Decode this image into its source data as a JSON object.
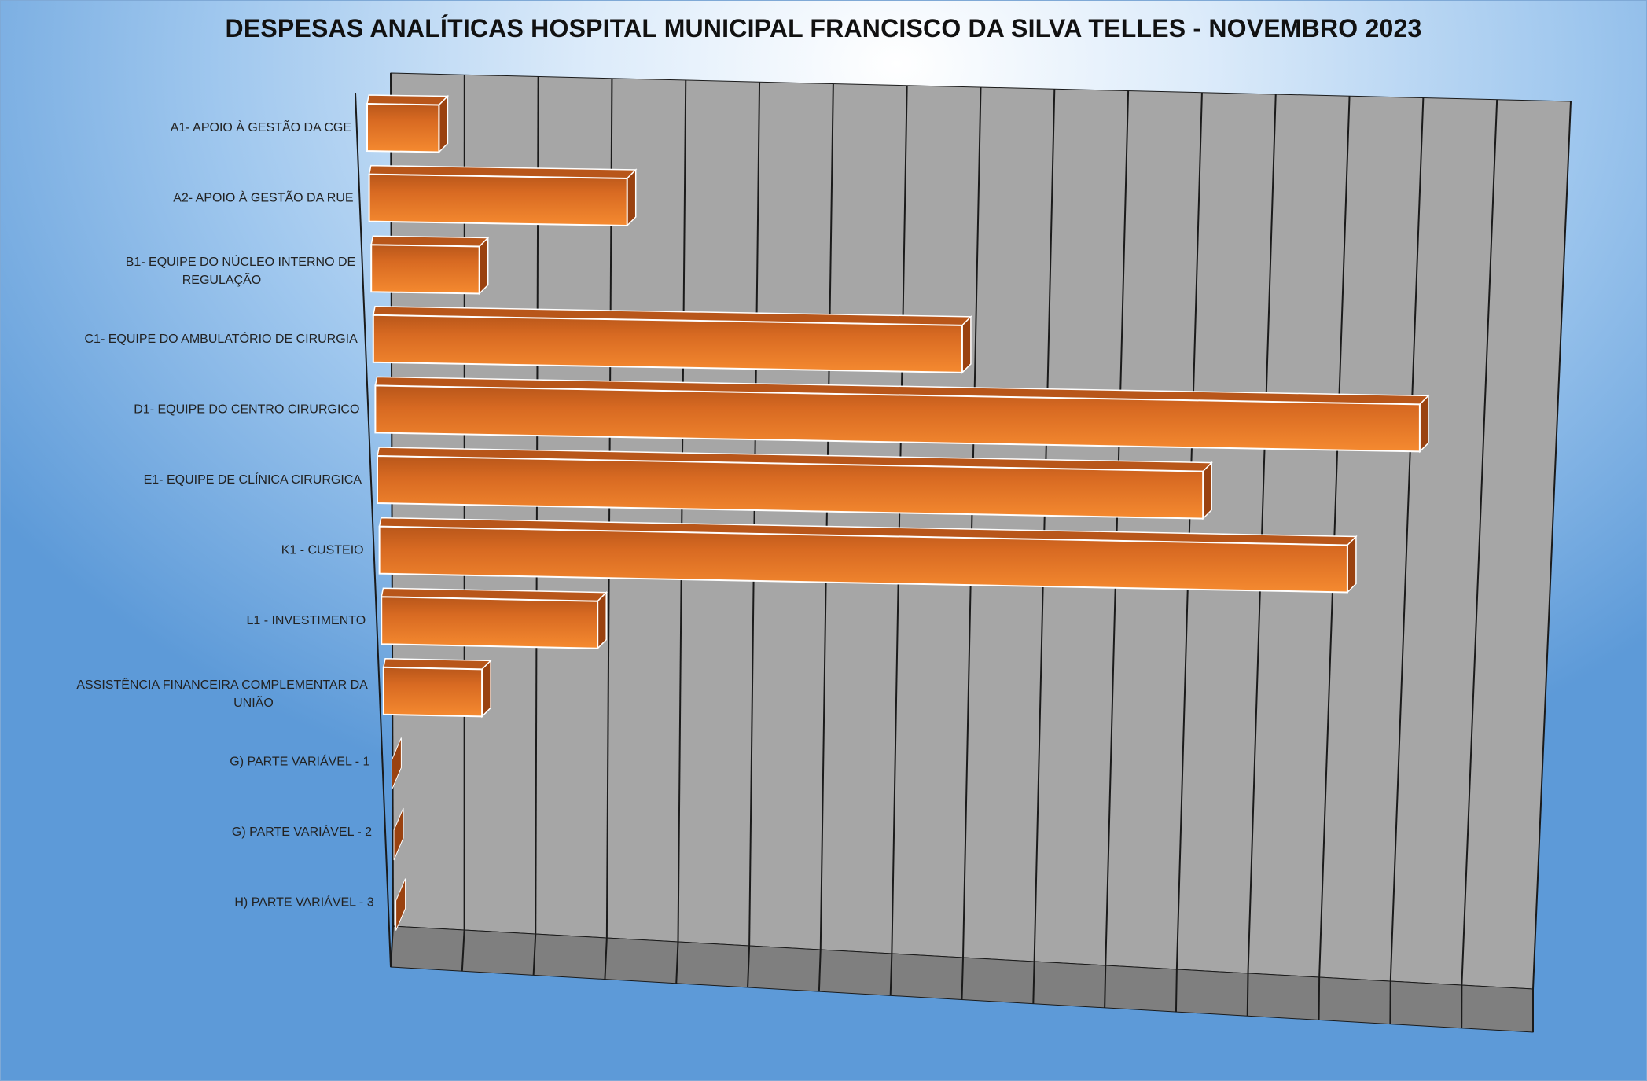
{
  "chart_data": {
    "type": "bar",
    "orientation": "horizontal",
    "style": "3d",
    "title": "DESPESAS ANALÍTICAS HOSPITAL MUNICIPAL FRANCISCO DA SILVA TELLES - NOVEMBRO 2023",
    "xlabel": "",
    "ylabel": "",
    "grid": true,
    "legend": "none",
    "categories": [
      "A1- APOIO À GESTÃO DA CGE",
      "A2- APOIO À GESTÃO DA RUE",
      "B1- EQUIPE DO NÚCLEO INTERNO DE REGULAÇÃO",
      "C1- EQUIPE DO AMBULATÓRIO DE CIRURGIA",
      "D1- EQUIPE DO CENTRO CIRURGICO",
      "E1- EQUIPE DE CLÍNICA CIRURGICA",
      "K1 - CUSTEIO",
      "L1 - INVESTIMENTO",
      "ASSISTÊNCIA FINANCEIRA COMPLEMENTAR DA UNIÃO",
      "G) PARTE VARIÁVEL - 1",
      "G) PARTE VARIÁVEL - 2",
      "H) PARTE VARIÁVEL - 3"
    ],
    "values": [
      1.0,
      3.7,
      1.6,
      9.0,
      16.5,
      13.5,
      16.4,
      3.8,
      1.8,
      0.0,
      0.0,
      0.0
    ],
    "xlim": [
      0,
      16.5
    ],
    "colors": {
      "bar": "#e97a28",
      "bar_dark": "#9a4210",
      "bar_top": "#b8561a",
      "wall": "#a6a6a6",
      "floor": "#7f7f7f",
      "grid": "#1a1a1a"
    }
  }
}
